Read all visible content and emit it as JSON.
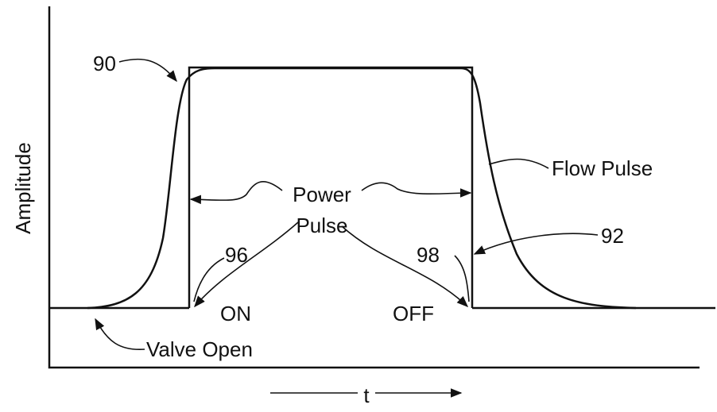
{
  "axes": {
    "y_label": "Amplitude",
    "x_label": "t"
  },
  "labels": {
    "ref_90": "90",
    "power_pulse_line1": "Power",
    "power_pulse_line2": "Pulse",
    "flow_pulse": "Flow Pulse",
    "ref_92": "92",
    "ref_96": "96",
    "ref_98": "98",
    "on": "ON",
    "off": "OFF",
    "valve_open": "Valve Open"
  }
}
